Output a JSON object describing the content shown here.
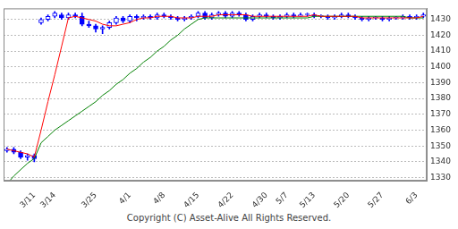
{
  "chart_data": {
    "type": "candlestick",
    "categories": [
      null,
      null,
      null,
      null,
      "3/11",
      null,
      null,
      "3/14",
      null,
      null,
      null,
      null,
      null,
      "3/25",
      null,
      null,
      null,
      null,
      "4/1",
      null,
      null,
      null,
      null,
      "4/8",
      null,
      null,
      null,
      null,
      "4/15",
      null,
      null,
      null,
      null,
      "4/22",
      null,
      null,
      null,
      null,
      "4/30",
      null,
      null,
      "5/7",
      null,
      null,
      null,
      "5/13",
      null,
      null,
      null,
      null,
      "5/20",
      null,
      null,
      null,
      null,
      "5/27",
      null,
      null,
      null,
      null,
      "6/3",
      null
    ],
    "open": [
      1347,
      1348,
      1346,
      1343,
      1344,
      1428,
      1430,
      1432,
      1433,
      1431,
      1433,
      1432,
      1427,
      1426,
      1424,
      1425,
      1428,
      1431,
      1429,
      1432,
      1431,
      1432,
      1431,
      1433,
      1432,
      1431,
      1430,
      1431,
      1432,
      1434,
      1431,
      1433,
      1434,
      1432,
      1434,
      1433,
      1430,
      1432,
      1433,
      1432,
      1431,
      1432,
      1433,
      1432,
      1433,
      1433,
      1432,
      1432,
      1431,
      1432,
      1433,
      1432,
      1431,
      1430,
      1431,
      1431,
      1430,
      1431,
      1431,
      1432,
      1431,
      1432
    ],
    "high": [
      1349,
      1349,
      1347,
      1345,
      1345,
      1431,
      1433,
      1435,
      1434,
      1434,
      1434,
      1434,
      1429,
      1427,
      1426,
      1429,
      1432,
      1432,
      1433,
      1433,
      1433,
      1433,
      1434,
      1434,
      1433,
      1432,
      1432,
      1433,
      1435,
      1435,
      1434,
      1435,
      1435,
      1435,
      1435,
      1434,
      1433,
      1434,
      1434,
      1433,
      1433,
      1434,
      1434,
      1434,
      1434,
      1434,
      1433,
      1433,
      1433,
      1434,
      1434,
      1433,
      1432,
      1432,
      1432,
      1432,
      1432,
      1432,
      1433,
      1433,
      1433,
      1434
    ],
    "low": [
      1346,
      1345,
      1342,
      1341,
      1340,
      1427,
      1429,
      1431,
      1430,
      1430,
      1431,
      1426,
      1425,
      1422,
      1421,
      1424,
      1427,
      1428,
      1428,
      1429,
      1430,
      1430,
      1430,
      1431,
      1430,
      1429,
      1429,
      1430,
      1431,
      1430,
      1430,
      1432,
      1431,
      1431,
      1432,
      1429,
      1429,
      1431,
      1431,
      1430,
      1430,
      1431,
      1431,
      1432,
      1432,
      1431,
      1431,
      1430,
      1430,
      1431,
      1431,
      1430,
      1429,
      1429,
      1430,
      1429,
      1429,
      1430,
      1430,
      1430,
      1430,
      1431
    ],
    "close": [
      1348,
      1346,
      1343,
      1344,
      1342,
      1430,
      1432,
      1434,
      1431,
      1433,
      1432,
      1427,
      1426,
      1424,
      1425,
      1428,
      1431,
      1429,
      1432,
      1431,
      1432,
      1431,
      1433,
      1432,
      1431,
      1430,
      1431,
      1432,
      1434,
      1431,
      1433,
      1434,
      1432,
      1434,
      1433,
      1430,
      1432,
      1433,
      1432,
      1431,
      1432,
      1433,
      1432,
      1433,
      1433,
      1432,
      1432,
      1431,
      1432,
      1433,
      1432,
      1431,
      1430,
      1431,
      1431,
      1430,
      1431,
      1431,
      1432,
      1431,
      1432,
      1433
    ],
    "color": "#0000ff",
    "lines": [
      {
        "color": "#ff0000",
        "values": [
          1348,
          1347,
          1346,
          1345,
          1343,
          1360,
          1378,
          1395,
          1413,
          1431,
          1432,
          1431,
          1430,
          1429,
          1427,
          1426,
          1426,
          1427,
          1428,
          1430,
          1431,
          1431,
          1432,
          1432,
          1432,
          1431,
          1431,
          1431,
          1432,
          1432,
          1432,
          1433,
          1433,
          1433,
          1433,
          1433,
          1432,
          1432,
          1432,
          1432,
          1432,
          1432,
          1432,
          1432,
          1432,
          1433,
          1432,
          1432,
          1432,
          1432,
          1432,
          1432,
          1431,
          1431,
          1431,
          1431,
          1431,
          1431,
          1431,
          1431,
          1431,
          1432
        ]
      },
      {
        "color": "#008000",
        "values": [
          1326,
          1331,
          1335,
          1339,
          1342,
          1352,
          1356,
          1360,
          1363,
          1366,
          1369,
          1372,
          1375,
          1378,
          1382,
          1385,
          1389,
          1392,
          1396,
          1399,
          1403,
          1406,
          1410,
          1413,
          1417,
          1420,
          1424,
          1427,
          1430,
          1431,
          1431,
          1431,
          1431,
          1431,
          1431,
          1431,
          1431,
          1431,
          1431,
          1431,
          1431,
          1431,
          1431,
          1431,
          1431,
          1432,
          1432,
          1432,
          1432,
          1432,
          1432,
          1432,
          1432,
          1432,
          1432,
          1432,
          1432,
          1432,
          1432,
          1431,
          1431,
          1431
        ]
      }
    ],
    "ylim": [
      1328,
      1437
    ],
    "yticks": [
      1330,
      1340,
      1350,
      1360,
      1370,
      1380,
      1390,
      1400,
      1410,
      1420,
      1430
    ],
    "grid": true,
    "annotations": [
      "Copyright (C) Asset-Alive All Rights Reserved."
    ]
  }
}
